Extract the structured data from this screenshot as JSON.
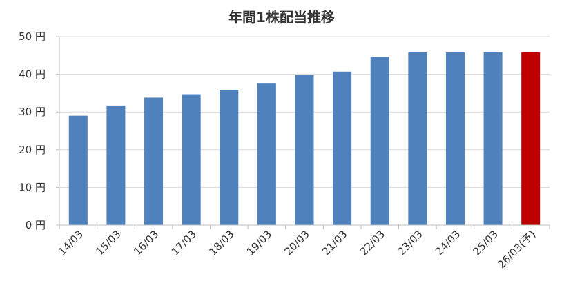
{
  "chart_data": {
    "type": "bar",
    "title": "年間1株配当推移",
    "xlabel": "",
    "ylabel": "",
    "y_unit_suffix": " 円",
    "ylim": [
      0,
      50
    ],
    "yticks": [
      0,
      10,
      20,
      30,
      40,
      50
    ],
    "grid": true,
    "categories": [
      "14/03",
      "15/03",
      "16/03",
      "17/03",
      "18/03",
      "19/03",
      "20/03",
      "21/03",
      "22/03",
      "23/03",
      "24/03",
      "25/03",
      "26/03(予)"
    ],
    "values": [
      29,
      31.7,
      33.8,
      34.7,
      35.9,
      37.7,
      39.8,
      40.7,
      44.6,
      45.8,
      45.8,
      45.8,
      45.8
    ],
    "bar_colors": [
      "#4f81bd",
      "#4f81bd",
      "#4f81bd",
      "#4f81bd",
      "#4f81bd",
      "#4f81bd",
      "#4f81bd",
      "#4f81bd",
      "#4f81bd",
      "#4f81bd",
      "#4f81bd",
      "#4f81bd",
      "#c00000"
    ],
    "grid_color": "#d9d9d9",
    "axis_color": "#bfbfbf"
  }
}
